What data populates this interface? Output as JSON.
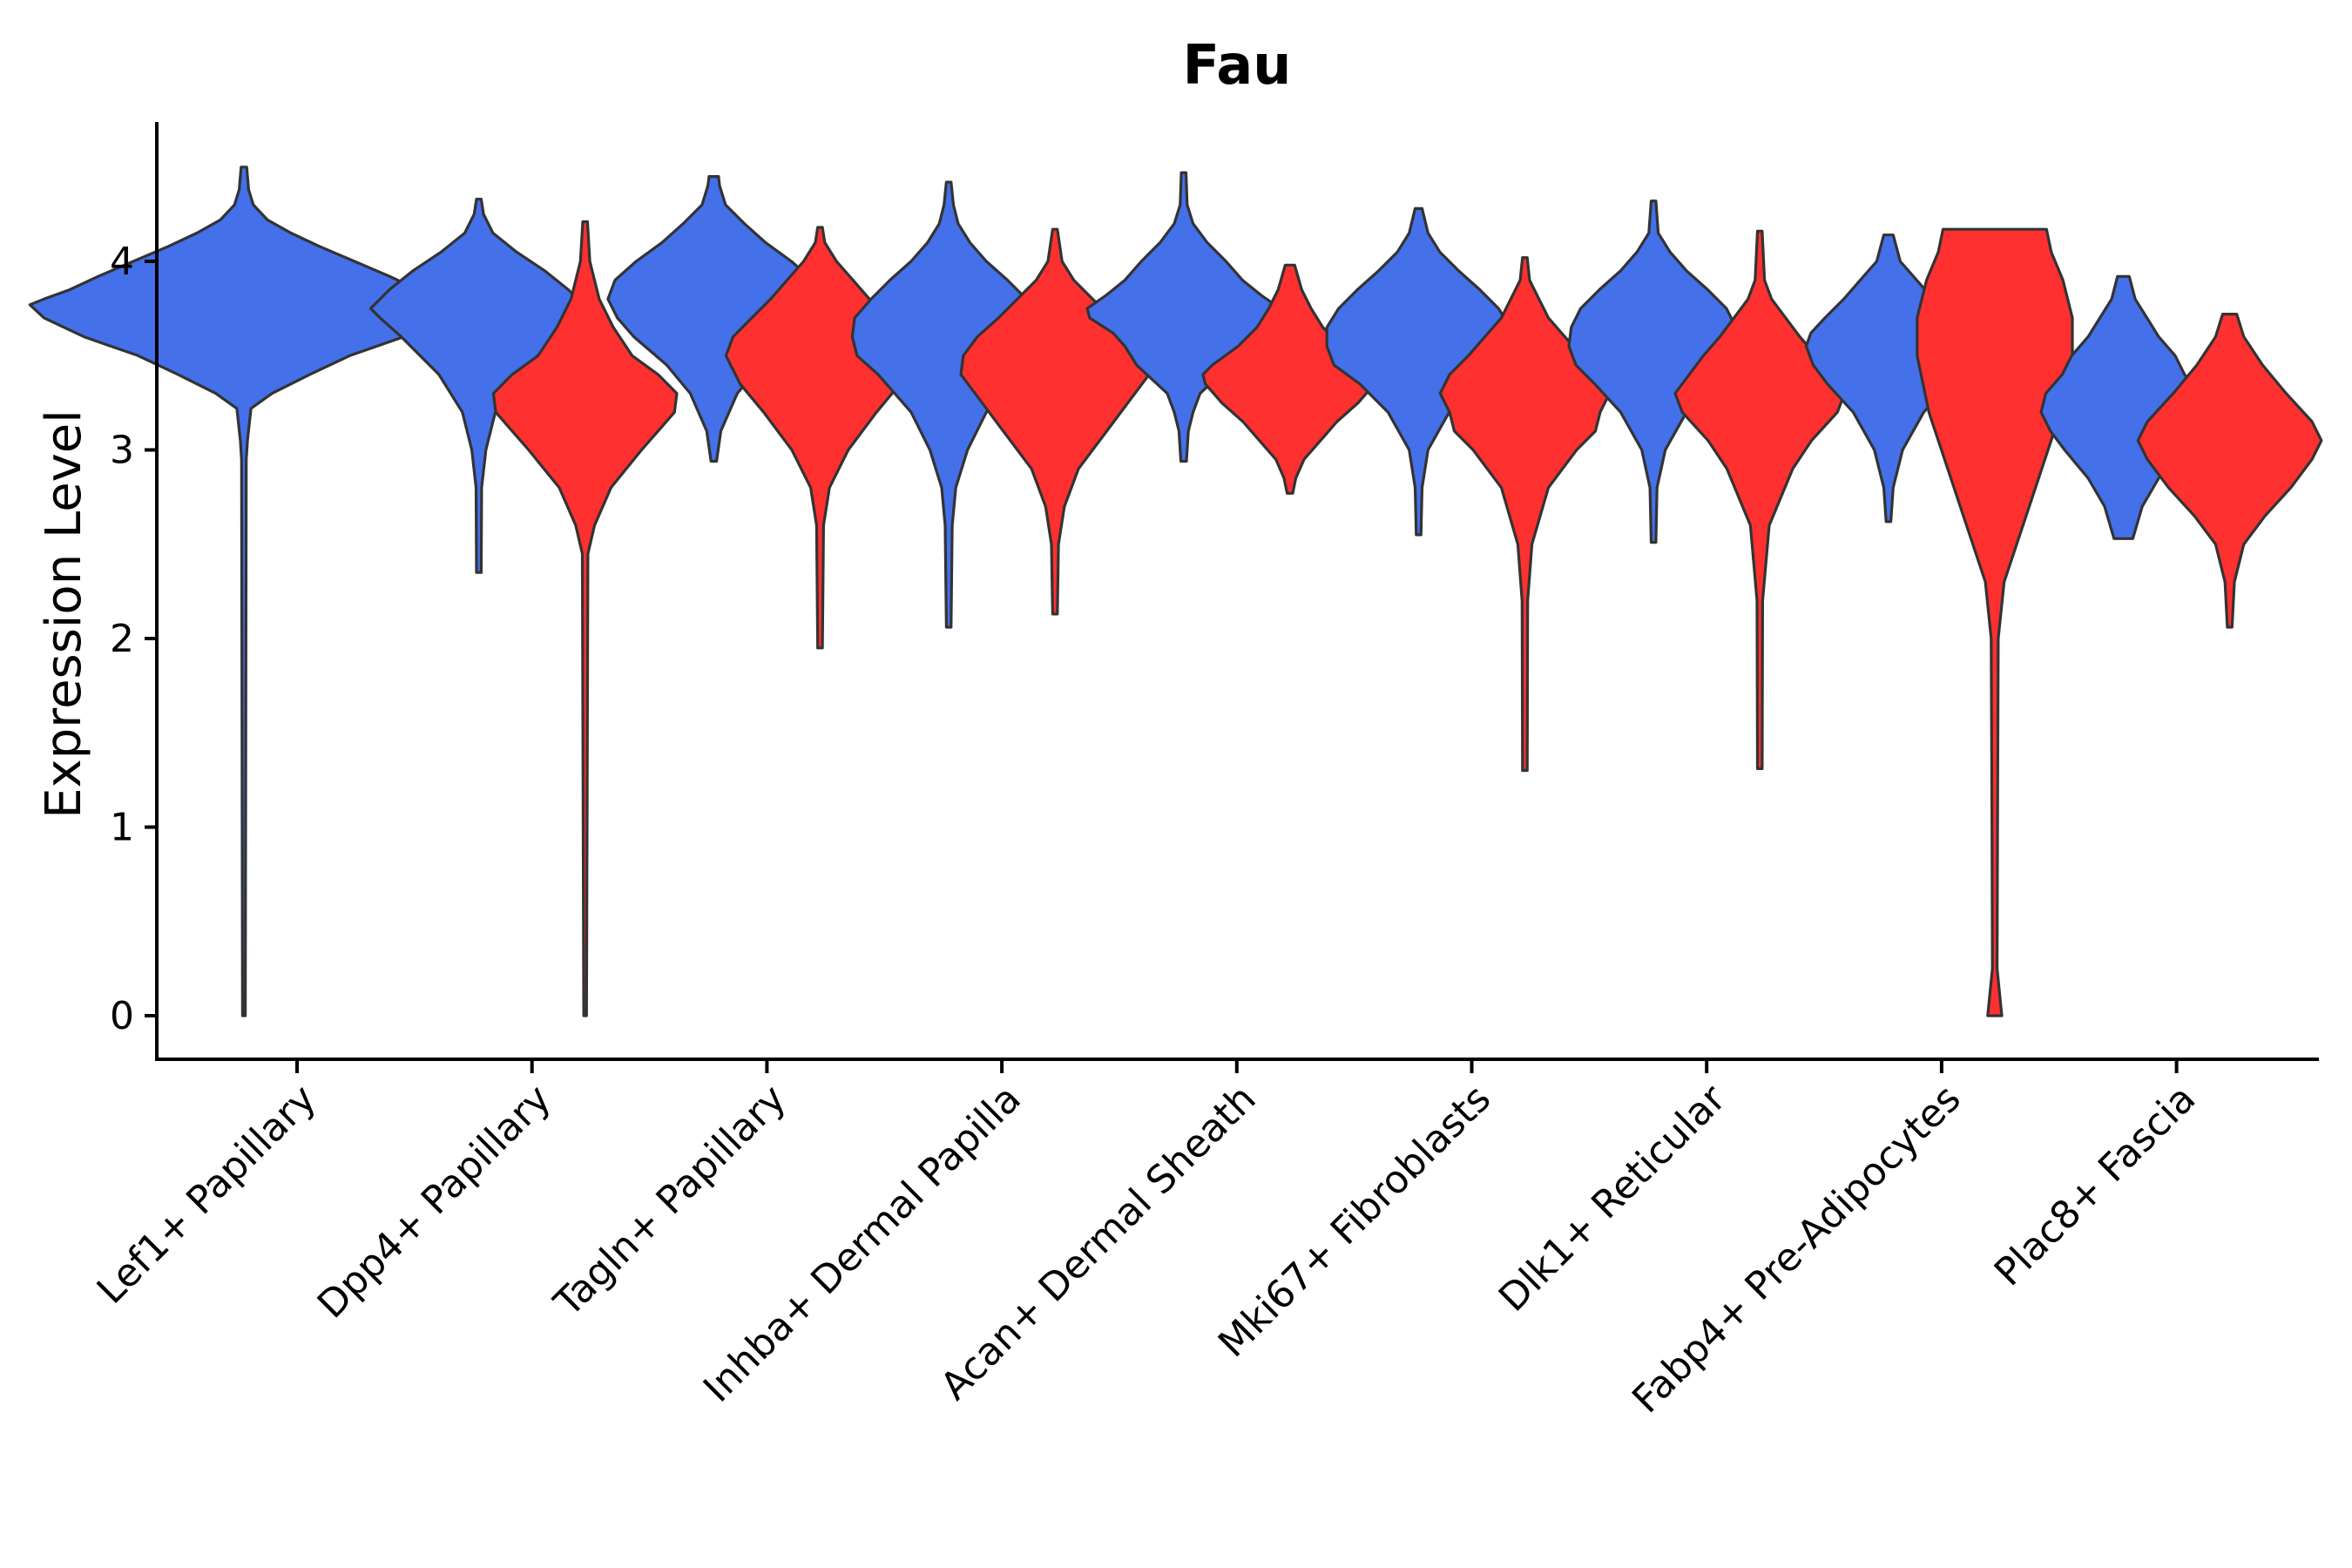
{
  "chart_data": {
    "type": "violin",
    "title": "Fau",
    "xlabel": "",
    "ylabel": "Expression Level",
    "ylim": [
      -0.22,
      4.75
    ],
    "yticks": [
      0,
      1,
      2,
      3,
      4
    ],
    "grid": false,
    "legend": "none",
    "colors": {
      "group_a": "#4470EA",
      "group_b": "#FF3030",
      "outline": "#333333"
    },
    "categories": [
      "Lef1+ Papillary",
      "Dpp4+ Papillary",
      "Tagln+ Papillary",
      "Inhba+ Dermal Papilla",
      "Acan+ Dermal Sheath",
      "Mki67+ Fibroblasts",
      "Dlk1+ Reticular",
      "Fabp4+ Pre-Adipocytes",
      "Plac8+ Fascia"
    ],
    "violins": [
      {
        "category": "Lef1+ Papillary",
        "group": "a",
        "min": 0.0,
        "max": 4.5,
        "profile": [
          [
            0.0,
            0.006
          ],
          [
            2.95,
            0.01
          ],
          [
            3.05,
            0.015
          ],
          [
            3.22,
            0.03
          ],
          [
            3.3,
            0.12
          ],
          [
            3.4,
            0.28
          ],
          [
            3.5,
            0.45
          ],
          [
            3.6,
            0.68
          ],
          [
            3.7,
            0.85
          ],
          [
            3.77,
            0.91
          ],
          [
            3.8,
            0.85
          ],
          [
            3.85,
            0.74
          ],
          [
            3.92,
            0.62
          ],
          [
            4.0,
            0.47
          ],
          [
            4.08,
            0.32
          ],
          [
            4.15,
            0.2
          ],
          [
            4.22,
            0.1
          ],
          [
            4.3,
            0.04
          ],
          [
            4.38,
            0.02
          ],
          [
            4.5,
            0.012
          ]
        ]
      },
      {
        "category": "Dpp4+ Papillary",
        "group": "a",
        "min": 2.35,
        "max": 4.33,
        "profile": [
          [
            2.35,
            0.01
          ],
          [
            2.8,
            0.012
          ],
          [
            3.0,
            0.03
          ],
          [
            3.2,
            0.07
          ],
          [
            3.4,
            0.17
          ],
          [
            3.5,
            0.25
          ],
          [
            3.6,
            0.33
          ],
          [
            3.7,
            0.42
          ],
          [
            3.75,
            0.46
          ],
          [
            3.85,
            0.38
          ],
          [
            3.95,
            0.28
          ],
          [
            4.05,
            0.16
          ],
          [
            4.15,
            0.06
          ],
          [
            4.25,
            0.02
          ],
          [
            4.33,
            0.01
          ]
        ]
      },
      {
        "category": "Dpp4+ Papillary",
        "group": "b",
        "min": 0.0,
        "max": 4.21,
        "profile": [
          [
            0.0,
            0.006
          ],
          [
            2.45,
            0.012
          ],
          [
            2.6,
            0.04
          ],
          [
            2.8,
            0.11
          ],
          [
            3.0,
            0.24
          ],
          [
            3.1,
            0.31
          ],
          [
            3.2,
            0.38
          ],
          [
            3.3,
            0.39
          ],
          [
            3.4,
            0.31
          ],
          [
            3.5,
            0.2
          ],
          [
            3.65,
            0.12
          ],
          [
            3.8,
            0.06
          ],
          [
            4.0,
            0.02
          ],
          [
            4.21,
            0.01
          ]
        ]
      },
      {
        "category": "Tagln+ Papillary",
        "group": "a",
        "min": 2.94,
        "max": 4.45,
        "profile": [
          [
            2.94,
            0.012
          ],
          [
            3.1,
            0.03
          ],
          [
            3.3,
            0.1
          ],
          [
            3.45,
            0.2
          ],
          [
            3.6,
            0.34
          ],
          [
            3.7,
            0.41
          ],
          [
            3.8,
            0.45
          ],
          [
            3.9,
            0.42
          ],
          [
            4.0,
            0.33
          ],
          [
            4.1,
            0.22
          ],
          [
            4.2,
            0.13
          ],
          [
            4.3,
            0.05
          ],
          [
            4.4,
            0.025
          ],
          [
            4.45,
            0.02
          ]
        ]
      },
      {
        "category": "Tagln+ Papillary",
        "group": "b",
        "min": 1.95,
        "max": 4.18,
        "profile": [
          [
            1.95,
            0.01
          ],
          [
            2.6,
            0.015
          ],
          [
            2.8,
            0.04
          ],
          [
            3.0,
            0.12
          ],
          [
            3.2,
            0.24
          ],
          [
            3.35,
            0.34
          ],
          [
            3.5,
            0.4
          ],
          [
            3.6,
            0.37
          ],
          [
            3.7,
            0.29
          ],
          [
            3.8,
            0.21
          ],
          [
            3.9,
            0.14
          ],
          [
            4.0,
            0.07
          ],
          [
            4.1,
            0.02
          ],
          [
            4.18,
            0.01
          ]
        ]
      },
      {
        "category": "Inhba+ Dermal Papilla",
        "group": "a",
        "min": 2.06,
        "max": 4.42,
        "profile": [
          [
            2.06,
            0.01
          ],
          [
            2.6,
            0.015
          ],
          [
            2.8,
            0.03
          ],
          [
            3.0,
            0.08
          ],
          [
            3.2,
            0.16
          ],
          [
            3.4,
            0.3
          ],
          [
            3.5,
            0.39
          ],
          [
            3.6,
            0.41
          ],
          [
            3.7,
            0.4
          ],
          [
            3.8,
            0.33
          ],
          [
            3.9,
            0.25
          ],
          [
            4.0,
            0.16
          ],
          [
            4.1,
            0.09
          ],
          [
            4.2,
            0.04
          ],
          [
            4.3,
            0.02
          ],
          [
            4.42,
            0.01
          ]
        ]
      },
      {
        "category": "Inhba+ Dermal Papilla",
        "group": "b",
        "min": 2.13,
        "max": 4.17,
        "profile": [
          [
            2.13,
            0.01
          ],
          [
            2.5,
            0.015
          ],
          [
            2.7,
            0.04
          ],
          [
            2.9,
            0.1
          ],
          [
            3.1,
            0.22
          ],
          [
            3.3,
            0.34
          ],
          [
            3.4,
            0.4
          ],
          [
            3.5,
            0.39
          ],
          [
            3.6,
            0.33
          ],
          [
            3.7,
            0.24
          ],
          [
            3.8,
            0.16
          ],
          [
            3.9,
            0.08
          ],
          [
            4.0,
            0.03
          ],
          [
            4.17,
            0.01
          ]
        ]
      },
      {
        "category": "Acan+ Dermal Sheath",
        "group": "a",
        "min": 2.94,
        "max": 4.47,
        "profile": [
          [
            2.94,
            0.012
          ],
          [
            3.1,
            0.02
          ],
          [
            3.2,
            0.04
          ],
          [
            3.3,
            0.07
          ],
          [
            3.45,
            0.2
          ],
          [
            3.55,
            0.25
          ],
          [
            3.62,
            0.3
          ],
          [
            3.7,
            0.4
          ],
          [
            3.75,
            0.41
          ],
          [
            3.82,
            0.33
          ],
          [
            3.9,
            0.25
          ],
          [
            4.0,
            0.18
          ],
          [
            4.1,
            0.1
          ],
          [
            4.2,
            0.04
          ],
          [
            4.3,
            0.015
          ],
          [
            4.47,
            0.01
          ]
        ]
      },
      {
        "category": "Acan+ Dermal Sheath",
        "group": "b",
        "min": 2.77,
        "max": 3.98,
        "profile": [
          [
            2.77,
            0.012
          ],
          [
            2.85,
            0.025
          ],
          [
            2.95,
            0.06
          ],
          [
            3.05,
            0.13
          ],
          [
            3.15,
            0.2
          ],
          [
            3.25,
            0.29
          ],
          [
            3.35,
            0.36
          ],
          [
            3.4,
            0.37
          ],
          [
            3.45,
            0.33
          ],
          [
            3.55,
            0.22
          ],
          [
            3.65,
            0.14
          ],
          [
            3.75,
            0.09
          ],
          [
            3.85,
            0.05
          ],
          [
            3.98,
            0.02
          ]
        ]
      },
      {
        "category": "Mki67+ Fibroblasts",
        "group": "a",
        "min": 2.55,
        "max": 4.28,
        "profile": [
          [
            2.55,
            0.01
          ],
          [
            2.8,
            0.015
          ],
          [
            3.0,
            0.04
          ],
          [
            3.2,
            0.13
          ],
          [
            3.35,
            0.25
          ],
          [
            3.45,
            0.36
          ],
          [
            3.55,
            0.39
          ],
          [
            3.65,
            0.39
          ],
          [
            3.75,
            0.34
          ],
          [
            3.85,
            0.26
          ],
          [
            3.95,
            0.17
          ],
          [
            4.05,
            0.09
          ],
          [
            4.15,
            0.04
          ],
          [
            4.28,
            0.015
          ]
        ]
      },
      {
        "category": "Mki67+ Fibroblasts",
        "group": "b",
        "min": 1.3,
        "max": 4.02,
        "profile": [
          [
            1.3,
            0.01
          ],
          [
            2.2,
            0.012
          ],
          [
            2.5,
            0.03
          ],
          [
            2.8,
            0.1
          ],
          [
            3.0,
            0.22
          ],
          [
            3.1,
            0.3
          ],
          [
            3.2,
            0.32
          ],
          [
            3.3,
            0.36
          ],
          [
            3.4,
            0.32
          ],
          [
            3.5,
            0.24
          ],
          [
            3.6,
            0.17
          ],
          [
            3.7,
            0.1
          ],
          [
            3.8,
            0.06
          ],
          [
            3.9,
            0.02
          ],
          [
            4.02,
            0.01
          ]
        ]
      },
      {
        "category": "Dlk1+ Reticular",
        "group": "a",
        "min": 2.51,
        "max": 4.32,
        "profile": [
          [
            2.51,
            0.01
          ],
          [
            2.8,
            0.015
          ],
          [
            3.0,
            0.05
          ],
          [
            3.2,
            0.14
          ],
          [
            3.35,
            0.25
          ],
          [
            3.45,
            0.33
          ],
          [
            3.55,
            0.36
          ],
          [
            3.65,
            0.35
          ],
          [
            3.75,
            0.31
          ],
          [
            3.85,
            0.23
          ],
          [
            3.95,
            0.14
          ],
          [
            4.05,
            0.07
          ],
          [
            4.15,
            0.02
          ],
          [
            4.32,
            0.01
          ]
        ]
      },
      {
        "category": "Dlk1+ Reticular",
        "group": "b",
        "min": 1.31,
        "max": 4.16,
        "profile": [
          [
            1.31,
            0.01
          ],
          [
            2.2,
            0.012
          ],
          [
            2.6,
            0.04
          ],
          [
            2.9,
            0.14
          ],
          [
            3.05,
            0.22
          ],
          [
            3.2,
            0.33
          ],
          [
            3.3,
            0.36
          ],
          [
            3.4,
            0.3
          ],
          [
            3.5,
            0.24
          ],
          [
            3.6,
            0.17
          ],
          [
            3.7,
            0.11
          ],
          [
            3.8,
            0.05
          ],
          [
            3.9,
            0.02
          ],
          [
            4.16,
            0.01
          ]
        ]
      },
      {
        "category": "Fabp4+ Pre-Adipocytes",
        "group": "a",
        "min": 2.62,
        "max": 4.14,
        "profile": [
          [
            2.62,
            0.01
          ],
          [
            2.8,
            0.02
          ],
          [
            3.0,
            0.06
          ],
          [
            3.2,
            0.15
          ],
          [
            3.35,
            0.26
          ],
          [
            3.45,
            0.32
          ],
          [
            3.55,
            0.35
          ],
          [
            3.62,
            0.33
          ],
          [
            3.7,
            0.27
          ],
          [
            3.8,
            0.19
          ],
          [
            3.9,
            0.12
          ],
          [
            4.0,
            0.05
          ],
          [
            4.14,
            0.02
          ]
        ]
      },
      {
        "category": "Fabp4+ Pre-Adipocytes",
        "group": "b",
        "min": 0.0,
        "max": 4.17,
        "profile": [
          [
            0.0,
            0.03
          ],
          [
            0.25,
            0.01
          ],
          [
            1.0,
            0.012
          ],
          [
            2.0,
            0.015
          ],
          [
            2.3,
            0.04
          ],
          [
            2.6,
            0.12
          ],
          [
            2.9,
            0.2
          ],
          [
            3.2,
            0.28
          ],
          [
            3.5,
            0.33
          ],
          [
            3.7,
            0.33
          ],
          [
            3.9,
            0.29
          ],
          [
            4.05,
            0.24
          ],
          [
            4.17,
            0.22
          ]
        ]
      },
      {
        "category": "Plac8+ Fascia",
        "group": "a",
        "min": 2.53,
        "max": 3.92,
        "profile": [
          [
            2.53,
            0.04
          ],
          [
            2.7,
            0.08
          ],
          [
            2.85,
            0.15
          ],
          [
            3.0,
            0.25
          ],
          [
            3.1,
            0.31
          ],
          [
            3.2,
            0.35
          ],
          [
            3.3,
            0.33
          ],
          [
            3.4,
            0.26
          ],
          [
            3.5,
            0.22
          ],
          [
            3.6,
            0.15
          ],
          [
            3.7,
            0.1
          ],
          [
            3.8,
            0.05
          ],
          [
            3.92,
            0.025
          ]
        ]
      },
      {
        "category": "Plac8+ Fascia",
        "group": "b",
        "min": 2.06,
        "max": 3.72,
        "profile": [
          [
            2.06,
            0.01
          ],
          [
            2.3,
            0.02
          ],
          [
            2.5,
            0.06
          ],
          [
            2.65,
            0.15
          ],
          [
            2.8,
            0.26
          ],
          [
            2.95,
            0.35
          ],
          [
            3.05,
            0.39
          ],
          [
            3.15,
            0.35
          ],
          [
            3.3,
            0.24
          ],
          [
            3.45,
            0.14
          ],
          [
            3.6,
            0.06
          ],
          [
            3.72,
            0.03
          ]
        ]
      }
    ]
  }
}
